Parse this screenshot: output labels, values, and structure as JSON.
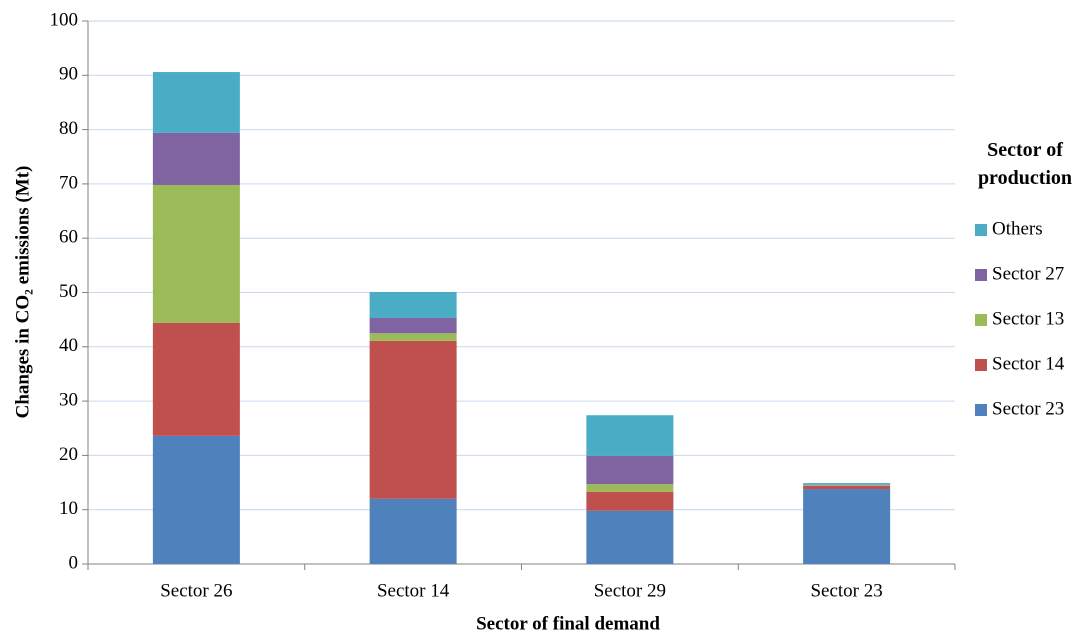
{
  "chart_data": {
    "type": "stacked_bar",
    "x_label": "Sector of final demand",
    "y_label": "Changes in CO₂ emissions (Mt)",
    "legend_title": "Sector of production",
    "categories": [
      "Sector 26",
      "Sector 14",
      "Sector 29",
      "Sector 23"
    ],
    "series": [
      {
        "name": "Sector 23",
        "color": "#4f81bd",
        "values": [
          23.6,
          12.0,
          9.8,
          13.8
        ]
      },
      {
        "name": "Sector 14",
        "color": "#c0504d",
        "values": [
          20.8,
          29.1,
          3.5,
          0.6
        ]
      },
      {
        "name": "Sector 13",
        "color": "#9bbb59",
        "values": [
          25.4,
          1.4,
          1.4,
          0.1
        ]
      },
      {
        "name": "Sector 27",
        "color": "#8064a2",
        "values": [
          9.6,
          2.8,
          5.2,
          0.1
        ]
      },
      {
        "name": "Others",
        "color": "#4bacc6",
        "values": [
          11.2,
          4.8,
          7.5,
          0.3
        ]
      }
    ],
    "ylim": [
      0,
      100
    ],
    "yticks": [
      0,
      10,
      20,
      30,
      40,
      50,
      60,
      70,
      80,
      90,
      100
    ],
    "grid": true,
    "legend": "right"
  }
}
